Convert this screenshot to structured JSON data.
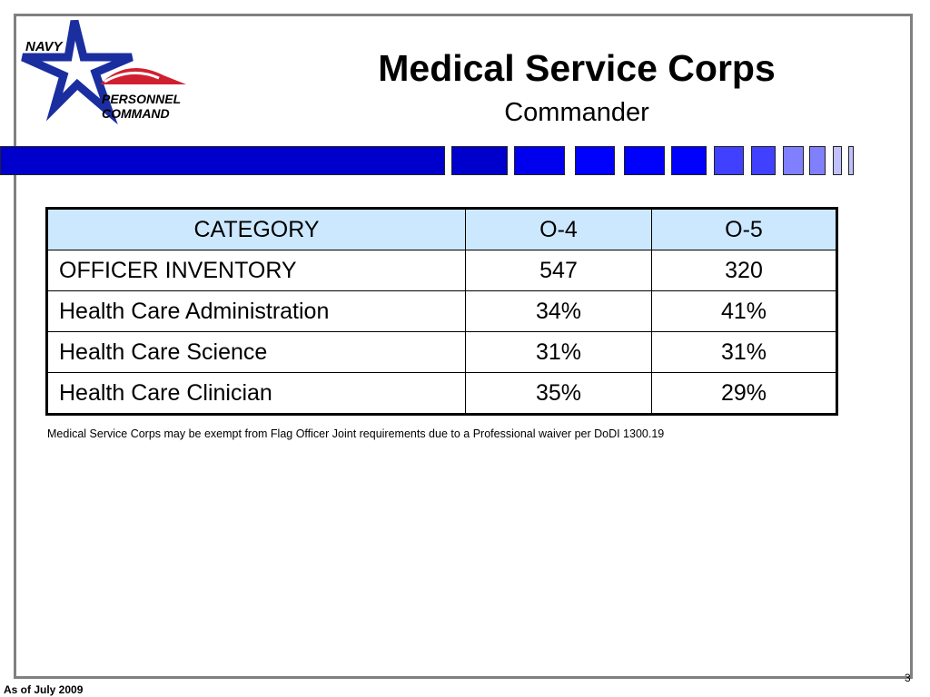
{
  "logo": {
    "text_top": "NAVY",
    "text_bottom": "PERSONNEL COMMAND"
  },
  "header": {
    "title": "Medical Service Corps",
    "subtitle": "Commander"
  },
  "colors": {
    "bar_dark": "#0000cc",
    "bar_mid": "#0000ff",
    "bar_light": "#4040ff",
    "bar_lighter": "#8080ff",
    "bar_lightest": "#c0c0ff",
    "table_header": "#cce8ff"
  },
  "table": {
    "headers": [
      "CATEGORY",
      "O-4",
      "O-5"
    ],
    "rows": [
      [
        "OFFICER INVENTORY",
        "547",
        "320"
      ],
      [
        "Health Care Administration",
        "34%",
        "41%"
      ],
      [
        "Health Care Science",
        "31%",
        "31%"
      ],
      [
        "Health Care Clinician",
        "35%",
        "29%"
      ]
    ]
  },
  "note": "Medical Service Corps may be exempt from Flag Officer Joint requirements due to a Professional waiver per DoDI 1300.19",
  "footer": {
    "date": "As of July 2009",
    "page": "3"
  }
}
